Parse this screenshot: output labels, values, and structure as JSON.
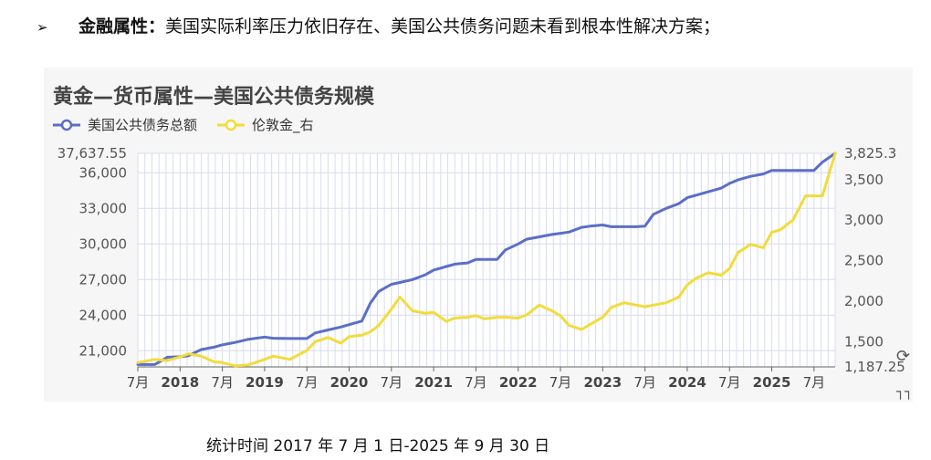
{
  "bullet": {
    "arrow": "➢",
    "key": "金融属性：",
    "text": "美国实际利率压力依旧存在、美国公共债务问题未看到根本性解决方案；"
  },
  "caption": "统计时间 2017 年 7 月 1 日-2025 年 9 月 30 日",
  "chart_data": {
    "type": "line",
    "title": "黄金—货币属性—美国公共债务规模",
    "legend_position": "top-left",
    "grid": true,
    "x_range": [
      2017.5,
      2025.75
    ],
    "x_ticks": [
      {
        "x": 2017.5,
        "label": "7月"
      },
      {
        "x": 2018.0,
        "label": "2018"
      },
      {
        "x": 2018.5,
        "label": "7月"
      },
      {
        "x": 2019.0,
        "label": "2019"
      },
      {
        "x": 2019.5,
        "label": "7月"
      },
      {
        "x": 2020.0,
        "label": "2020"
      },
      {
        "x": 2020.5,
        "label": "7月"
      },
      {
        "x": 2021.0,
        "label": "2021"
      },
      {
        "x": 2021.5,
        "label": "7月"
      },
      {
        "x": 2022.0,
        "label": "2022"
      },
      {
        "x": 2022.5,
        "label": "7月"
      },
      {
        "x": 2023.0,
        "label": "2023"
      },
      {
        "x": 2023.5,
        "label": "7月"
      },
      {
        "x": 2024.0,
        "label": "2024"
      },
      {
        "x": 2024.5,
        "label": "7月"
      },
      {
        "x": 2025.0,
        "label": "2025"
      },
      {
        "x": 2025.5,
        "label": "7月"
      }
    ],
    "y_left": {
      "range": [
        19637.55,
        37637.55
      ],
      "ticks": [
        "21,000",
        "24,000",
        "27,000",
        "30,000",
        "33,000",
        "36,000",
        "37,637.55"
      ],
      "tick_values": [
        21000,
        24000,
        27000,
        30000,
        33000,
        36000,
        37637.55
      ]
    },
    "y_right": {
      "range": [
        1187.25,
        3825.3
      ],
      "ticks": [
        "1,187.25",
        "1,500",
        "2,000",
        "2,500",
        "3,000",
        "3,500",
        "3,825.3"
      ],
      "tick_values": [
        1187.25,
        1500,
        2000,
        2500,
        3000,
        3500,
        3825.3
      ]
    },
    "series": [
      {
        "name": "美国公共债务总额",
        "axis": "left",
        "color": "#5b6ec8",
        "x": [
          2017.5,
          2017.7,
          2017.85,
          2018.0,
          2018.1,
          2018.25,
          2018.4,
          2018.5,
          2018.65,
          2018.8,
          2019.0,
          2019.1,
          2019.3,
          2019.5,
          2019.6,
          2019.75,
          2019.9,
          2020.0,
          2020.15,
          2020.25,
          2020.35,
          2020.5,
          2020.6,
          2020.75,
          2020.9,
          2021.0,
          2021.15,
          2021.25,
          2021.4,
          2021.5,
          2021.6,
          2021.75,
          2021.85,
          2022.0,
          2022.1,
          2022.25,
          2022.4,
          2022.5,
          2022.6,
          2022.75,
          2022.85,
          2023.0,
          2023.1,
          2023.25,
          2023.4,
          2023.5,
          2023.6,
          2023.75,
          2023.9,
          2024.0,
          2024.1,
          2024.25,
          2024.4,
          2024.5,
          2024.6,
          2024.75,
          2024.9,
          2025.0,
          2025.1,
          2025.25,
          2025.4,
          2025.5,
          2025.6,
          2025.75
        ],
        "values": [
          19840,
          19840,
          20450,
          20490,
          20580,
          21100,
          21300,
          21500,
          21700,
          21950,
          22150,
          22050,
          22030,
          22030,
          22500,
          22750,
          23000,
          23200,
          23500,
          25000,
          26000,
          26600,
          26750,
          27000,
          27400,
          27800,
          28100,
          28300,
          28400,
          28700,
          28700,
          28700,
          29500,
          30000,
          30400,
          30600,
          30800,
          30900,
          31000,
          31400,
          31500,
          31600,
          31450,
          31450,
          31450,
          31500,
          32500,
          33000,
          33400,
          33900,
          34100,
          34400,
          34700,
          35100,
          35400,
          35700,
          35900,
          36200,
          36200,
          36200,
          36200,
          36200,
          36900,
          37637.55
        ]
      },
      {
        "name": "伦敦金_右",
        "axis": "right",
        "color": "#f2dc3a",
        "x": [
          2017.5,
          2017.7,
          2017.85,
          2018.0,
          2018.1,
          2018.25,
          2018.4,
          2018.5,
          2018.65,
          2018.8,
          2019.0,
          2019.1,
          2019.3,
          2019.5,
          2019.6,
          2019.75,
          2019.9,
          2020.0,
          2020.15,
          2020.25,
          2020.35,
          2020.5,
          2020.6,
          2020.75,
          2020.9,
          2021.0,
          2021.15,
          2021.25,
          2021.4,
          2021.5,
          2021.6,
          2021.75,
          2021.85,
          2022.0,
          2022.1,
          2022.25,
          2022.4,
          2022.5,
          2022.6,
          2022.75,
          2022.85,
          2023.0,
          2023.1,
          2023.25,
          2023.4,
          2023.5,
          2023.6,
          2023.75,
          2023.9,
          2024.0,
          2024.1,
          2024.25,
          2024.4,
          2024.5,
          2024.6,
          2024.75,
          2024.9,
          2025.0,
          2025.1,
          2025.25,
          2025.4,
          2025.5,
          2025.6,
          2025.75
        ],
        "values": [
          1240,
          1280,
          1265,
          1310,
          1350,
          1320,
          1250,
          1240,
          1200,
          1210,
          1280,
          1320,
          1280,
          1390,
          1500,
          1550,
          1480,
          1560,
          1580,
          1620,
          1700,
          1900,
          2050,
          1880,
          1850,
          1860,
          1750,
          1790,
          1800,
          1820,
          1780,
          1800,
          1800,
          1790,
          1830,
          1950,
          1880,
          1820,
          1700,
          1650,
          1710,
          1800,
          1920,
          1980,
          1950,
          1930,
          1950,
          1980,
          2050,
          2200,
          2280,
          2350,
          2320,
          2400,
          2600,
          2700,
          2660,
          2850,
          2880,
          3000,
          3300,
          3300,
          3300,
          3825.3
        ]
      }
    ]
  },
  "icons": {
    "refresh": "refresh-icon",
    "corner": "toolbox-icon"
  }
}
